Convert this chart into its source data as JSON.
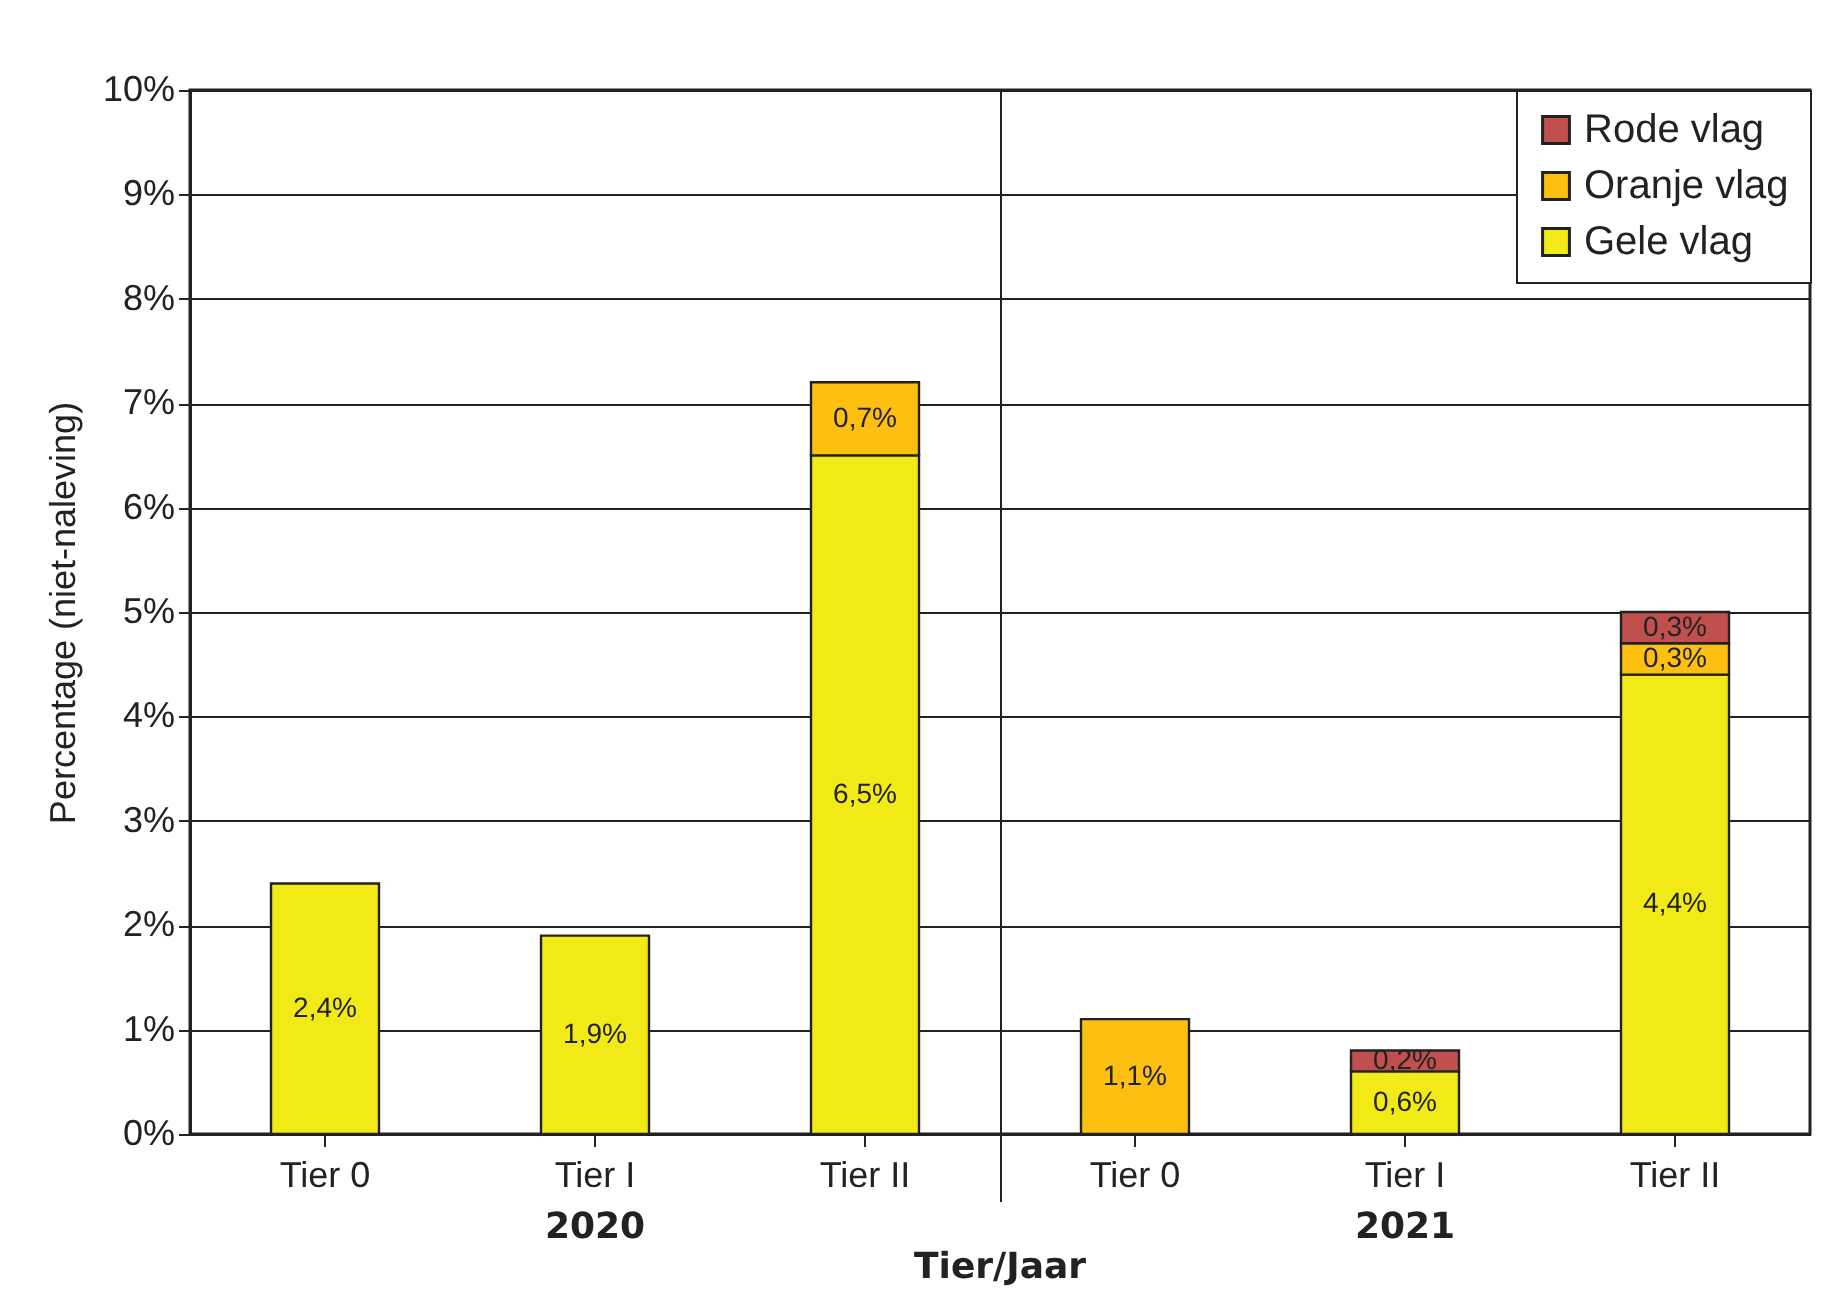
{
  "chart_data": {
    "type": "bar",
    "stacked": true,
    "xlabel": "Tier/Jaar",
    "ylabel": "Percentage (niet-naleving)",
    "categories": [
      "Tier 0",
      "Tier I",
      "Tier II",
      "Tier 0",
      "Tier I",
      "Tier II"
    ],
    "series": [
      {
        "name": "Gele vlag",
        "color": "#f2ea16",
        "values": [
          2.4,
          1.9,
          6.5,
          null,
          0.6,
          4.4
        ],
        "value_labels": [
          "2,4%",
          "1,9%",
          "6,5%",
          null,
          "0,6%",
          "4,4%"
        ]
      },
      {
        "name": "Oranje vlag",
        "color": "#fdbf10",
        "values": [
          null,
          null,
          0.7,
          1.1,
          null,
          0.3
        ],
        "value_labels": [
          null,
          null,
          "0,7%",
          "1,1%",
          null,
          "0,3%"
        ]
      },
      {
        "name": "Rode vlag",
        "color": "#c0504d",
        "values": [
          null,
          null,
          null,
          null,
          0.2,
          0.3
        ],
        "value_labels": [
          null,
          null,
          null,
          null,
          "0,2%",
          "0,3%"
        ]
      }
    ],
    "ylim": [
      0,
      10
    ],
    "yticks": [
      {
        "value": 0,
        "label": "0%"
      },
      {
        "value": 1,
        "label": "1%"
      },
      {
        "value": 2,
        "label": "2%"
      },
      {
        "value": 3,
        "label": "3%"
      },
      {
        "value": 4,
        "label": "4%"
      },
      {
        "value": 5,
        "label": "5%"
      },
      {
        "value": 6,
        "label": "6%"
      },
      {
        "value": 7,
        "label": "7%"
      },
      {
        "value": 8,
        "label": "8%"
      },
      {
        "value": 9,
        "label": "9%"
      },
      {
        "value": 10,
        "label": "10%"
      }
    ],
    "grid": "y",
    "legend": "top right",
    "annotations": [
      "2020",
      "2021"
    ]
  }
}
